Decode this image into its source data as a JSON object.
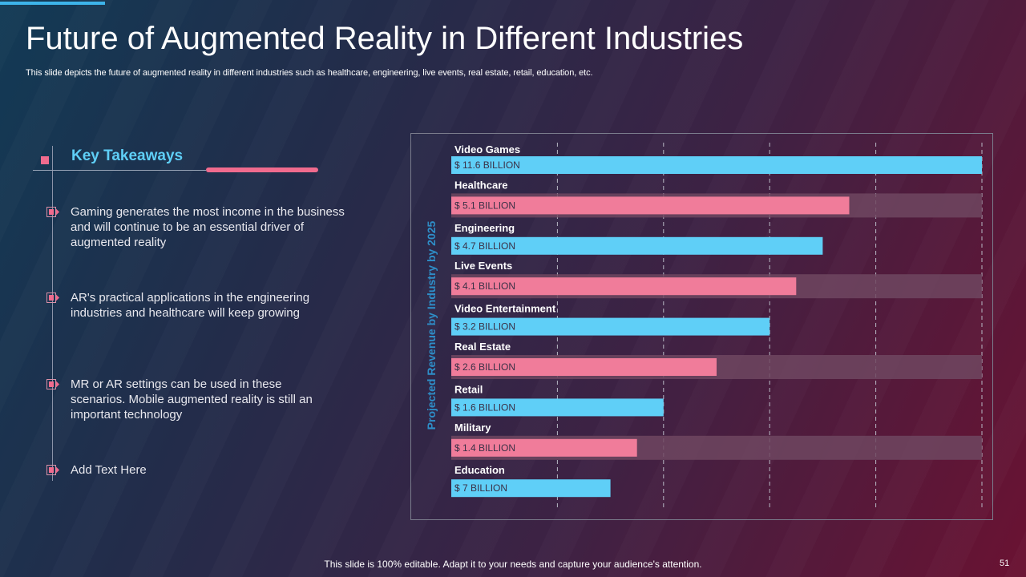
{
  "slide": {
    "title": "Future of Augmented Reality in Different Industries",
    "subtitle": "This slide depicts the future of augmented reality in different industries such as healthcare, engineering, live events, real estate, retail, education, etc.",
    "footer": "This slide is 100% editable. Adapt it to your needs and capture your audience's attention.",
    "page_number": "51"
  },
  "takeaways": {
    "heading": "Key Takeaways",
    "items": [
      "Gaming generates the most income in the business and will continue to be an essential driver of augmented reality",
      "AR's practical applications in the engineering industries and healthcare will keep growing",
      "MR or AR settings can be used in these scenarios. Mobile augmented reality is still an important technology",
      "Add Text Here"
    ]
  },
  "colors": {
    "blue": "#5fcff7",
    "pink": "#f07c9a",
    "track": "#6e4760"
  },
  "chart_data": {
    "type": "bar",
    "orientation": "horizontal",
    "ylabel": "Projected Revenue by Industry by 2025",
    "categories": [
      "Video Games",
      "Healthcare",
      "Engineering",
      "Live Events",
      "Video Entertainment",
      "Real Estate",
      "Retail",
      "Military",
      "Education"
    ],
    "values": [
      11.6,
      5.1,
      4.7,
      4.1,
      3.2,
      2.6,
      1.6,
      1.4,
      7
    ],
    "bar_widths": [
      100,
      75,
      70,
      65,
      60,
      50,
      40,
      35,
      30
    ],
    "labels": [
      "$ 11.6 BILLION",
      "$ 5.1 BILLION",
      "$ 4.7 BILLION",
      "$ 4.1 BILLION",
      "$ 3.2 BILLION",
      "$ 2.6 BILLION",
      "$ 1.6 BILLION",
      "$ 1.4 BILLION",
      "$ 7 BILLION"
    ],
    "xlim": [
      0,
      100
    ],
    "grid": true,
    "legend": "none"
  }
}
